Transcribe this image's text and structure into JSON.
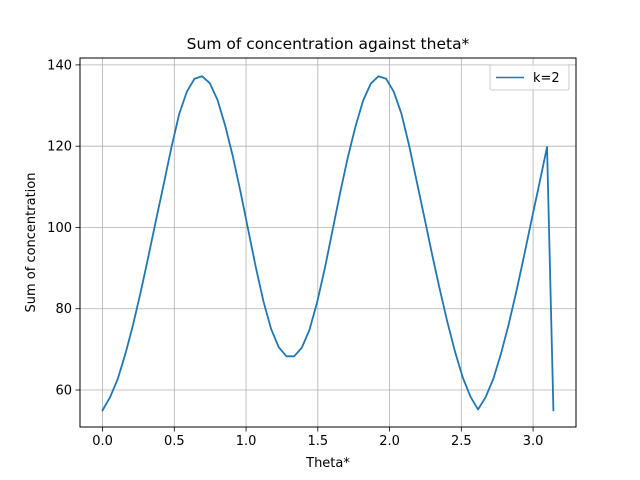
{
  "chart_data": {
    "type": "line",
    "title": "Sum of concentration against theta*",
    "xlabel": "Theta*",
    "ylabel": "Sum of concentration",
    "xlim": [
      -0.157,
      3.299
    ],
    "ylim": [
      50.9,
      141.7
    ],
    "xticks": [
      0.0,
      0.5,
      1.0,
      1.5,
      2.0,
      2.5,
      3.0
    ],
    "xtick_labels": [
      "0.0",
      "0.5",
      "1.0",
      "1.5",
      "2.0",
      "2.5",
      "3.0"
    ],
    "yticks": [
      60,
      80,
      100,
      120,
      140
    ],
    "ytick_labels": [
      "60",
      "80",
      "100",
      "120",
      "140"
    ],
    "grid": true,
    "legend_position": "upper right",
    "series": [
      {
        "name": "k=2",
        "color": "#1f77b4",
        "x": [
          0.0,
          0.0534,
          0.1068,
          0.1602,
          0.2136,
          0.267,
          0.3204,
          0.3738,
          0.4272,
          0.4806,
          0.534,
          0.5874,
          0.6408,
          0.6942,
          0.7476,
          0.801,
          0.8544,
          0.9078,
          0.9612,
          1.0146,
          1.068,
          1.1214,
          1.1748,
          1.2282,
          1.2816,
          1.335,
          1.3884,
          1.4418,
          1.4952,
          1.5486,
          1.602,
          1.6554,
          1.7088,
          1.7622,
          1.8156,
          1.869,
          1.9224,
          1.9758,
          2.0292,
          2.0826,
          2.136,
          2.1894,
          2.2428,
          2.2962,
          2.3496,
          2.403,
          2.4564,
          2.5098,
          2.5632,
          2.6166,
          2.67,
          2.7234,
          2.7768,
          2.8302,
          2.8836,
          2.937,
          2.9904,
          3.0438,
          3.0972,
          3.1416
        ],
        "y": [
          55.0,
          58.3,
          62.8,
          69.0,
          76.2,
          84.3,
          93.0,
          102.0,
          110.8,
          119.8,
          127.9,
          133.4,
          136.6,
          137.2,
          135.5,
          131.4,
          125.1,
          117.5,
          108.8,
          99.5,
          90.2,
          81.8,
          75.0,
          70.5,
          68.3,
          68.3,
          70.4,
          74.8,
          81.6,
          89.9,
          99.2,
          108.5,
          117.2,
          124.8,
          131.2,
          135.4,
          137.2,
          136.6,
          133.4,
          128.0,
          120.2,
          111.3,
          102.4,
          93.4,
          84.8,
          76.7,
          69.4,
          63.1,
          58.4,
          55.2,
          58.3,
          62.8,
          69.0,
          76.2,
          84.3,
          93.0,
          102.0,
          110.8,
          119.8,
          55.0
        ]
      }
    ]
  }
}
